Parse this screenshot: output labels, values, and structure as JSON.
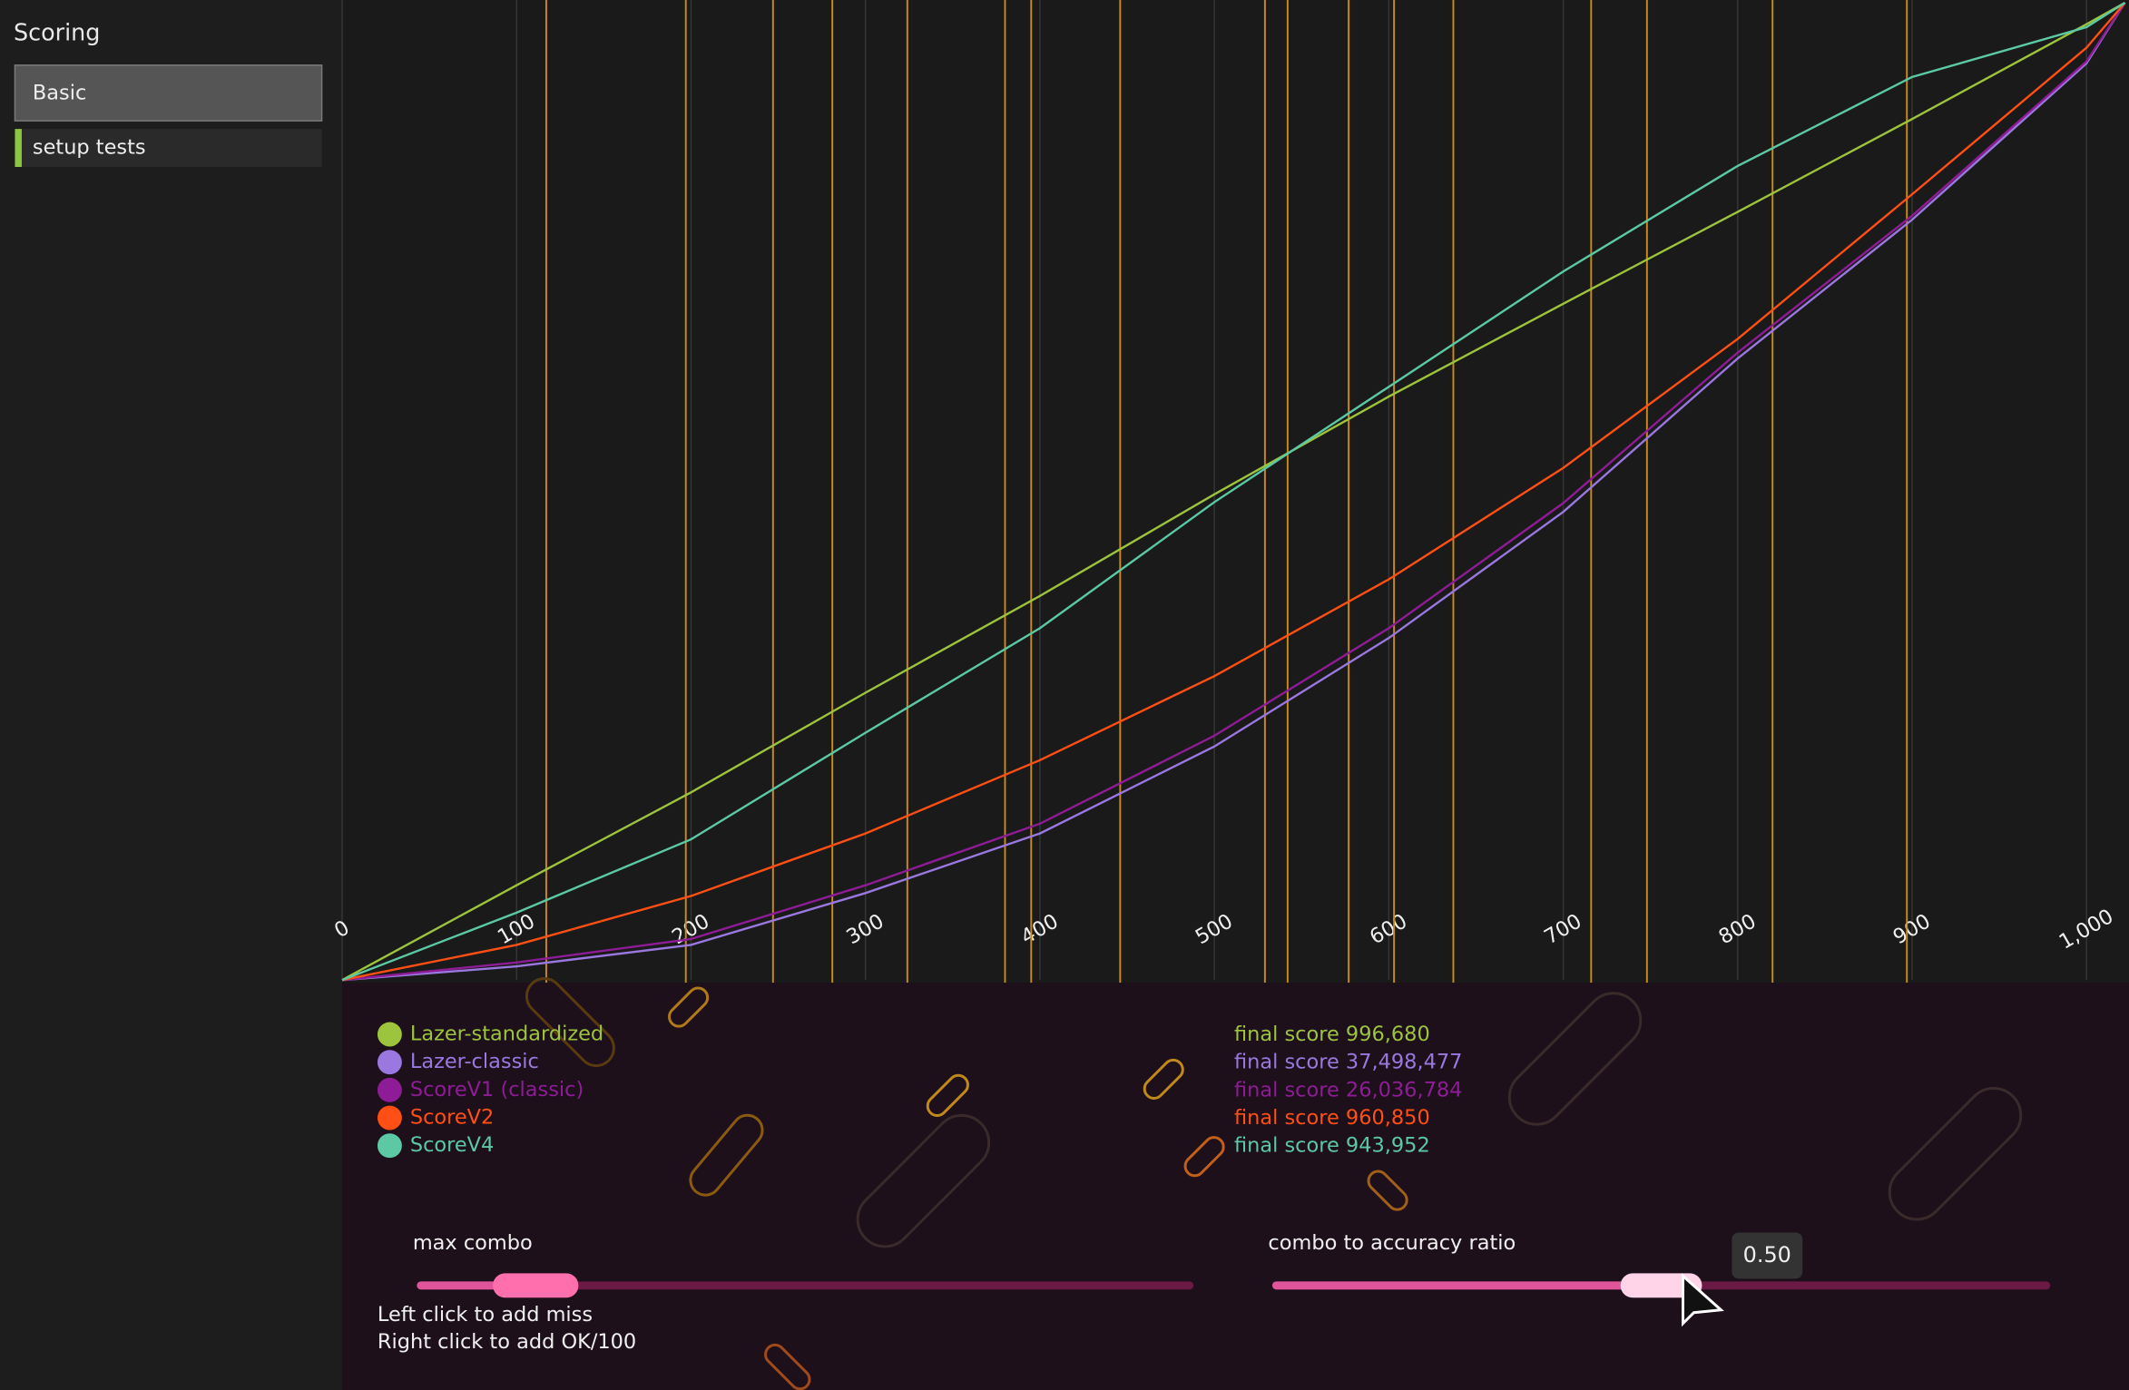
{
  "sidebar": {
    "title": "Scoring",
    "items": [
      "Basic",
      "setup tests"
    ]
  },
  "chart_data": {
    "type": "line",
    "x": [
      0,
      100,
      200,
      300,
      400,
      500,
      600,
      700,
      800,
      900,
      1000,
      1022
    ],
    "xlim": [
      0,
      1022
    ],
    "ylim": [
      0,
      1
    ],
    "xticks": [
      0,
      100,
      200,
      300,
      400,
      500,
      600,
      700,
      800,
      900,
      {
        "value": 1000,
        "label": "1,000"
      }
    ],
    "grid": true,
    "series": [
      {
        "name": "Lazer-standardized",
        "color": "#9cc43c",
        "values": [
          0,
          0.097,
          0.192,
          0.294,
          0.393,
          0.497,
          0.597,
          0.692,
          0.786,
          0.881,
          0.978,
          1.0
        ]
      },
      {
        "name": "Lazer-classic",
        "color": "#9a78e0",
        "values": [
          0,
          0.014,
          0.036,
          0.089,
          0.15,
          0.239,
          0.35,
          0.479,
          0.636,
          0.778,
          0.938,
          1.0
        ]
      },
      {
        "name": "ScoreV1 (classic)",
        "color": "#8e1c96",
        "values": [
          0,
          0.018,
          0.042,
          0.097,
          0.16,
          0.25,
          0.36,
          0.488,
          0.642,
          0.782,
          0.94,
          1.0
        ]
      },
      {
        "name": "ScoreV2",
        "color": "#ff4f14",
        "values": [
          0,
          0.036,
          0.086,
          0.15,
          0.225,
          0.311,
          0.41,
          0.524,
          0.656,
          0.804,
          0.954,
          1.0
        ]
      },
      {
        "name": "ScoreV4",
        "color": "#5cc9a4",
        "values": [
          0,
          0.069,
          0.144,
          0.253,
          0.36,
          0.489,
          0.607,
          0.725,
          0.833,
          0.924,
          0.975,
          1.0
        ]
      }
    ],
    "misses": {
      "color": "#c98a1a",
      "x": [
        117,
        197,
        247,
        281,
        324,
        380,
        395,
        446,
        529,
        542,
        577,
        603,
        637,
        716,
        748,
        820,
        897
      ]
    },
    "scores": {
      "label": "final score",
      "values": [
        996680,
        37498477,
        26036784,
        960850,
        943952
      ],
      "value_labels": [
        "996,680",
        "37,498,477",
        "26,036,784",
        "960,850",
        "943,952"
      ]
    }
  },
  "controls": {
    "sliders": [
      {
        "label": "max combo"
      },
      {
        "label": "combo to accuracy ratio",
        "value": 0.5,
        "value_label": "0.50"
      }
    ],
    "hints": [
      "Left click to add miss",
      "Right click to add OK/100"
    ]
  }
}
